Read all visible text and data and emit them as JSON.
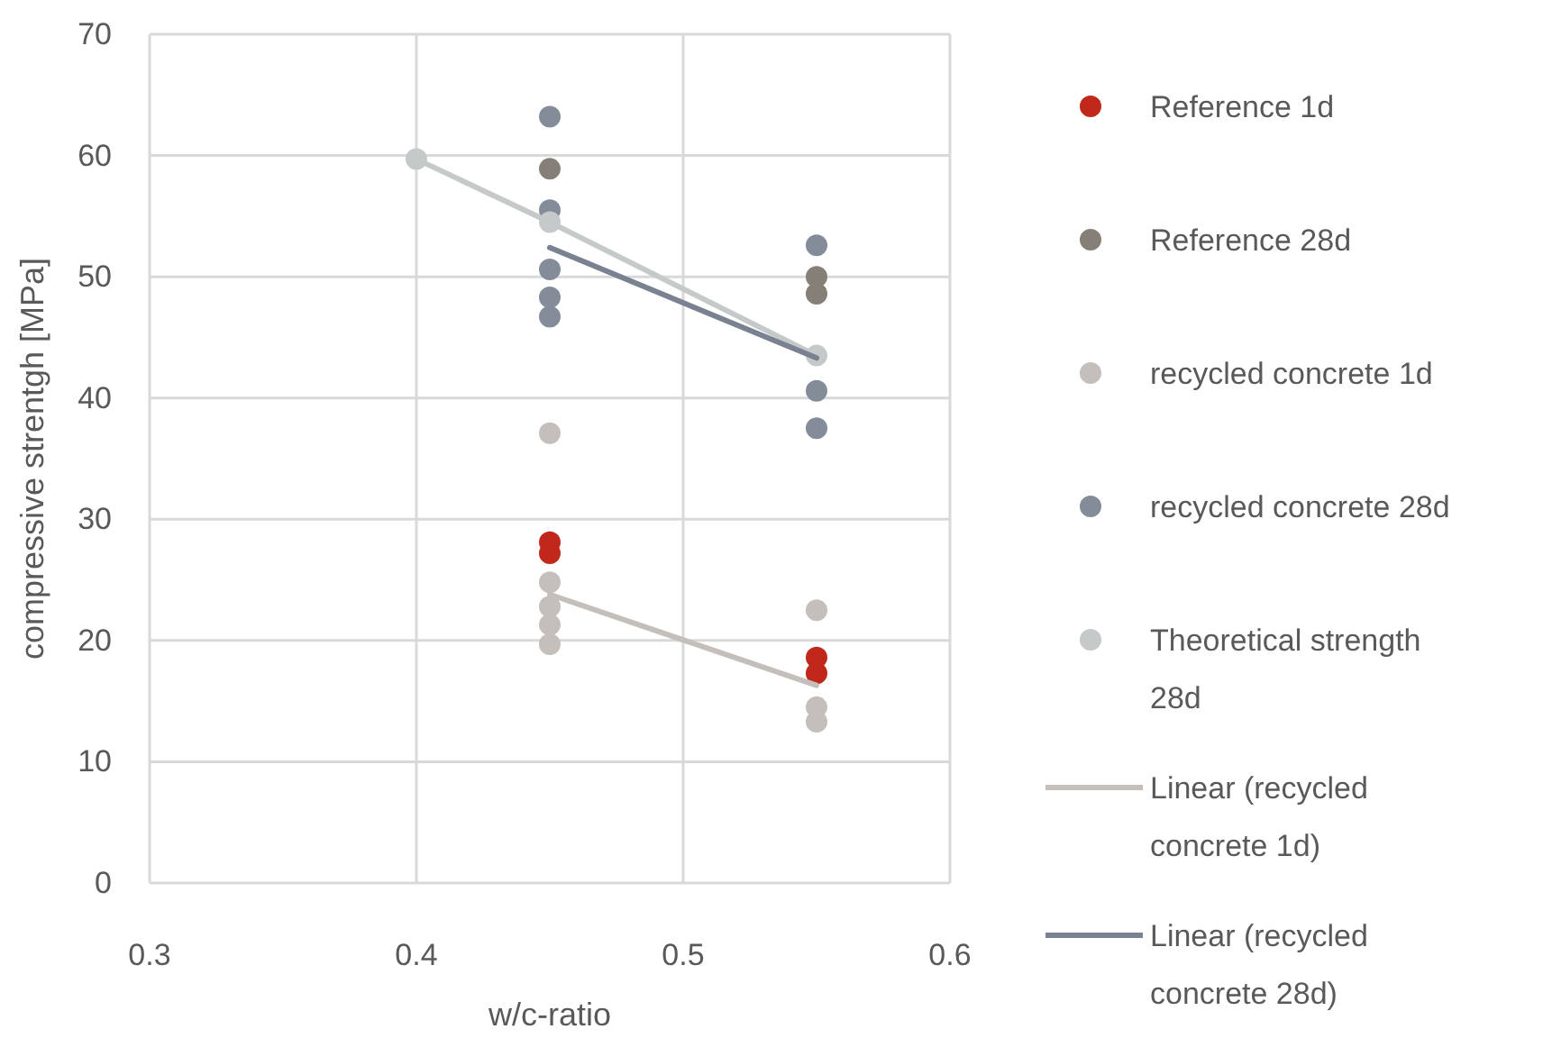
{
  "chart_data": {
    "type": "scatter",
    "xlabel": "w/c-ratio",
    "ylabel": "compressive strentgh [MPa]",
    "xlim": [
      0.3,
      0.6
    ],
    "xticks": [
      0.3,
      0.4,
      0.5,
      0.6
    ],
    "ylim": [
      0,
      70
    ],
    "yticks": [
      0,
      10,
      20,
      30,
      40,
      50,
      60,
      70
    ],
    "grid": true,
    "legend": "right",
    "marker": "circle",
    "series": [
      {
        "name": "Reference 1d",
        "color": "#c0281c",
        "x": [
          0.45,
          0.45,
          0.55,
          0.55
        ],
        "values": [
          28.1,
          27.2,
          18.6,
          17.3
        ]
      },
      {
        "name": "Reference 28d",
        "color": "#857f78",
        "x": [
          0.45,
          0.55,
          0.55
        ],
        "values": [
          58.9,
          50.0,
          48.6
        ]
      },
      {
        "name": "recycled concrete 1d",
        "color": "#c4bfba",
        "x": [
          0.45,
          0.45,
          0.45,
          0.45,
          0.45,
          0.55,
          0.55,
          0.55
        ],
        "values": [
          37.1,
          24.8,
          22.8,
          21.3,
          19.7,
          22.5,
          14.5,
          13.3
        ]
      },
      {
        "name": "recycled concrete 28d",
        "color": "#848b99",
        "x": [
          0.45,
          0.45,
          0.45,
          0.45,
          0.45,
          0.55,
          0.55,
          0.55
        ],
        "values": [
          63.2,
          55.5,
          50.6,
          48.3,
          46.7,
          52.6,
          40.6,
          37.5
        ]
      },
      {
        "name": "Theoretical strength 28d",
        "type": "line",
        "marker": "circle",
        "color": "#c5c9ca",
        "x": [
          0.4,
          0.45,
          0.55
        ],
        "values": [
          59.7,
          54.5,
          43.5
        ]
      },
      {
        "name": "Linear (recycled concrete 1d)",
        "type": "line",
        "marker": "none",
        "color": "#c4bfba",
        "x": [
          0.45,
          0.55
        ],
        "values": [
          23.8,
          16.3
        ]
      },
      {
        "name": "Linear (recycled concrete 28d)",
        "type": "line",
        "marker": "none",
        "color": "#7a8291",
        "x": [
          0.45,
          0.55
        ],
        "values": [
          52.4,
          43.3
        ]
      }
    ]
  }
}
